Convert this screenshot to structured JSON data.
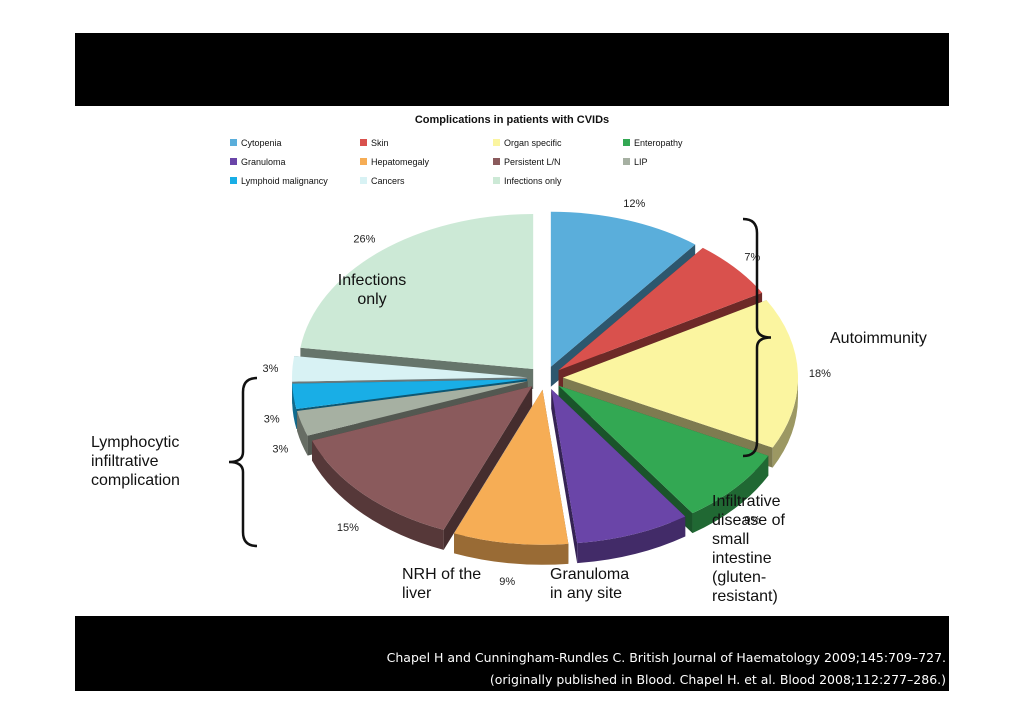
{
  "chart_data": {
    "type": "pie",
    "title": "Complications in patients with CVIDs",
    "legend_position": "top",
    "slices": [
      {
        "name": "Cytopenia",
        "value": 12,
        "label": "12%",
        "color": "#5aaedb"
      },
      {
        "name": "Skin",
        "value": 7,
        "label": "7%",
        "color": "#d9514d"
      },
      {
        "name": "Organ specific",
        "value": 18,
        "label": "18%",
        "color": "#fbf5a0"
      },
      {
        "name": "Enteropathy",
        "value": 9,
        "label": "9%",
        "color": "#33a853"
      },
      {
        "name": "Granuloma",
        "value": 9,
        "label": "",
        "color": "#6a45a8"
      },
      {
        "name": "Hepatomegaly",
        "value": 9,
        "label": "9%",
        "color": "#f6ad55"
      },
      {
        "name": "Persistent L/N",
        "value": 15,
        "label": "15%",
        "color": "#8a5a5c"
      },
      {
        "name": "LIP",
        "value": 3,
        "label": "3%",
        "color": "#a6b0a2"
      },
      {
        "name": "Lymphoid malignancy",
        "value": 3,
        "label": "3%",
        "color": "#19aee6"
      },
      {
        "name": "Cancers",
        "value": 3,
        "label": "3%",
        "color": "#d8f2f4"
      },
      {
        "name": "Infections only",
        "value": 26,
        "label": "26%",
        "color": "#cce9d6"
      }
    ]
  },
  "annotations": {
    "infections_only": [
      "Infections",
      "only"
    ],
    "autoimmunity": "Autoimmunity",
    "lymphocytic": [
      "Lymphocytic",
      "infiltrative",
      "complication"
    ],
    "nrh": [
      "NRH of the",
      "liver"
    ],
    "granuloma": [
      "Granuloma",
      "in any site"
    ],
    "infiltrative": [
      "Infiltrative",
      "disease of",
      "small",
      "intestine",
      "(gluten-",
      "resistant)"
    ]
  },
  "citation": {
    "line1": "Chapel H and Cunningham-Rundles C. British Journal of Haematology 2009;145:709–727.",
    "line2": "(originally published in Blood. Chapel H. et al. Blood 2008;112:277–286.)"
  }
}
